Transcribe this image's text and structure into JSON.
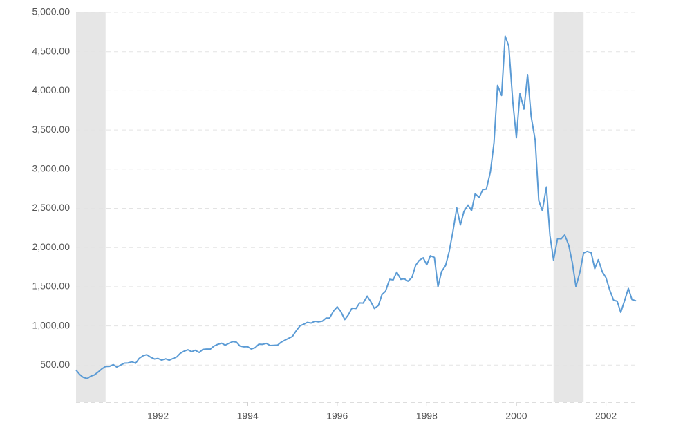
{
  "chart_data": {
    "type": "line",
    "x": [
      1990.17,
      1990.25,
      1990.33,
      1990.42,
      1990.5,
      1990.58,
      1990.67,
      1990.75,
      1990.83,
      1990.92,
      1991,
      1991.08,
      1991.17,
      1991.25,
      1991.33,
      1991.42,
      1991.5,
      1991.58,
      1991.67,
      1991.75,
      1991.83,
      1991.92,
      1992,
      1992.08,
      1992.17,
      1992.25,
      1992.33,
      1992.42,
      1992.5,
      1992.58,
      1992.67,
      1992.75,
      1992.83,
      1992.92,
      1993,
      1993.08,
      1993.17,
      1993.25,
      1993.33,
      1993.42,
      1993.5,
      1993.58,
      1993.67,
      1993.75,
      1993.83,
      1993.92,
      1994,
      1994.08,
      1994.17,
      1994.25,
      1994.33,
      1994.42,
      1994.5,
      1994.58,
      1994.67,
      1994.75,
      1994.83,
      1994.92,
      1995,
      1995.08,
      1995.17,
      1995.25,
      1995.33,
      1995.42,
      1995.5,
      1995.58,
      1995.67,
      1995.75,
      1995.83,
      1995.92,
      1996,
      1996.08,
      1996.17,
      1996.25,
      1996.33,
      1996.42,
      1996.5,
      1996.58,
      1996.67,
      1996.75,
      1996.83,
      1996.92,
      1997,
      1997.08,
      1997.17,
      1997.25,
      1997.33,
      1997.42,
      1997.5,
      1997.58,
      1997.67,
      1997.75,
      1997.83,
      1997.92,
      1998,
      1998.08,
      1998.17,
      1998.25,
      1998.33,
      1998.42,
      1998.5,
      1998.58,
      1998.67,
      1998.75,
      1998.83,
      1998.92,
      1999,
      1999.08,
      1999.17,
      1999.25,
      1999.33,
      1999.42,
      1999.5,
      1999.58,
      1999.67,
      1999.75,
      1999.83,
      1999.92,
      2000,
      2000.08,
      2000.17,
      2000.25,
      2000.33,
      2000.42,
      2000.5,
      2000.58,
      2000.67,
      2000.75,
      2000.83,
      2000.92,
      2001,
      2001.08,
      2001.17,
      2001.25,
      2001.33,
      2001.42,
      2001.5,
      2001.58,
      2001.67,
      2001.75,
      2001.83,
      2001.92,
      2002,
      2002.08,
      2002.17,
      2002.25,
      2002.33,
      2002.42,
      2002.5,
      2002.58,
      2002.67
    ],
    "series": [
      {
        "color": "#5b9bd5",
        "values": [
          438,
          381,
          344,
          329,
          359,
          374,
          414,
          453,
          482,
          484,
          506,
          475,
          502,
          525,
          527,
          542,
          523,
          586,
          620,
          633,
          603,
          578,
          585,
          563,
          580,
          563,
          583,
          605,
          652,
          677,
          696,
          671,
          690,
          661,
          700,
          704,
          705,
          743,
          763,
          779,
          754,
          777,
          800,
          793,
          743,
          733,
          735,
          706,
          722,
          766,
          764,
          777,
          750,
          752,
          755,
          793,
          817,
          843,
          865,
          933,
          1001,
          1020,
          1044,
          1036,
          1059,
          1052,
          1060,
          1100,
          1101,
          1191,
          1243,
          1185,
          1081,
          1142,
          1227,
          1222,
          1293,
          1291,
          1380,
          1309,
          1222,
          1261,
          1400,
          1442,
          1594,
          1587,
          1686,
          1594,
          1601,
          1570,
          1619,
          1771,
          1836,
          1869,
          1779,
          1895,
          1873,
          1499,
          1694,
          1771,
          1950,
          2193,
          2506,
          2288,
          2461,
          2543,
          2471,
          2686,
          2638,
          2739,
          2746,
          2966,
          3336,
          4069,
          3940,
          4697,
          4573,
          3861,
          3401,
          3966,
          3767,
          4206,
          3673,
          3370,
          2598,
          2471,
          2773,
          2152,
          1840,
          2116,
          2110,
          2161,
          2027,
          1805,
          1499,
          1690,
          1931,
          1950,
          1934,
          1731,
          1845,
          1688,
          1616,
          1463,
          1328,
          1315,
          1172,
          1330,
          1479,
          1336,
          1320
        ]
      }
    ],
    "shaded_ranges": [
      [
        1990.17,
        1990.83
      ],
      [
        2000.83,
        2001.5
      ]
    ],
    "shade_color": "#e6e6e6",
    "xlim": [
      1990.17,
      2002.67
    ],
    "xticks": [
      1992,
      1994,
      1996,
      1998,
      2000,
      2002
    ],
    "ylim": [
      0,
      5000
    ],
    "yticks": [
      {
        "value": 500,
        "label": "500.00"
      },
      {
        "value": 1000,
        "label": "1,000.00"
      },
      {
        "value": 1500,
        "label": "1,500.00"
      },
      {
        "value": 2000,
        "label": "2,000.00"
      },
      {
        "value": 2500,
        "label": "2,500.00"
      },
      {
        "value": 3000,
        "label": "3,000.00"
      },
      {
        "value": 3500,
        "label": "3,500.00"
      },
      {
        "value": 4000,
        "label": "4,000.00"
      },
      {
        "value": 4500,
        "label": "4,500.00"
      },
      {
        "value": 5000,
        "label": "5,000.00"
      }
    ],
    "grid": true
  }
}
